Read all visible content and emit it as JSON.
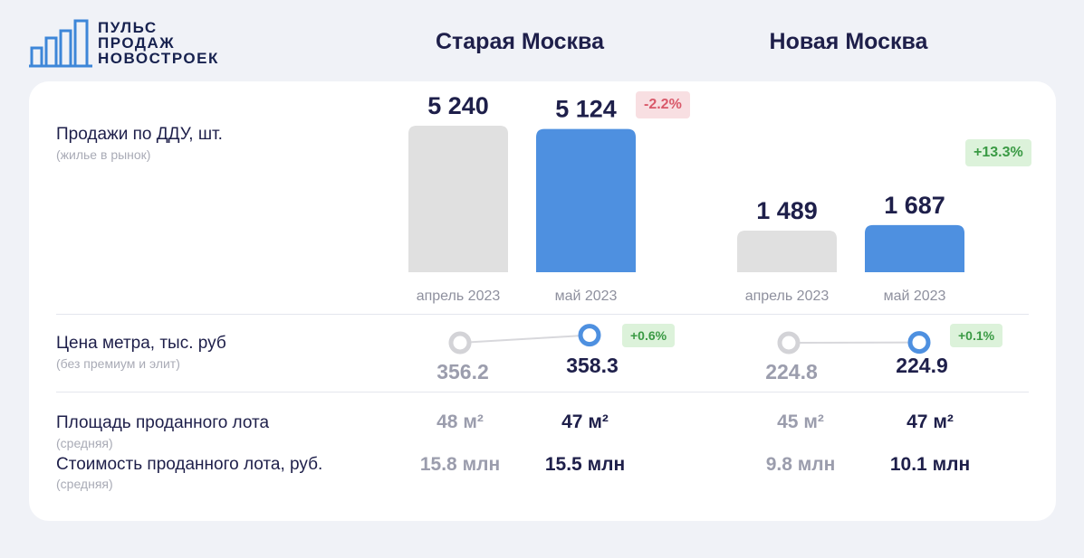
{
  "logo": {
    "lines": [
      "ПУЛЬС",
      "ПРОДАЖ",
      "НОВОСТРОЕК"
    ]
  },
  "columns": {
    "old": "Старая Москва",
    "new": "Новая Москва"
  },
  "rows": {
    "sales": {
      "title": "Продажи по ДДУ, шт.",
      "subtitle": "(жилье в рынок)"
    },
    "price": {
      "title": "Цена метра, тыс. руб",
      "subtitle": "(без премиум и элит)"
    },
    "area": {
      "title": "Площадь проданного лота",
      "subtitle": "(средняя)"
    },
    "cost": {
      "title": "Стоимость проданного лота, руб.",
      "subtitle": "(средняя)"
    }
  },
  "chart_data": [
    {
      "type": "bar",
      "group": "Старая Москва",
      "categories": [
        "апрель 2023",
        "май 2023"
      ],
      "values": [
        5240,
        5124
      ],
      "value_labels": [
        "5 240",
        "5 124"
      ],
      "change": "-2.2%",
      "colors": [
        "#e0e0e0",
        "#4e90e0"
      ]
    },
    {
      "type": "bar",
      "group": "Новая Москва",
      "categories": [
        "апрель 2023",
        "май 2023"
      ],
      "values": [
        1489,
        1687
      ],
      "value_labels": [
        "1 489",
        "1 687"
      ],
      "change": "+13.3%",
      "colors": [
        "#e0e0e0",
        "#4e90e0"
      ]
    },
    {
      "type": "line",
      "group": "Старая Москва",
      "categories": [
        "апрель 2023",
        "май 2023"
      ],
      "values": [
        356.2,
        358.3
      ],
      "value_labels": [
        "356.2",
        "358.3"
      ],
      "change": "+0.6%"
    },
    {
      "type": "line",
      "group": "Новая Москва",
      "categories": [
        "апрель 2023",
        "май 2023"
      ],
      "values": [
        224.8,
        224.9
      ],
      "value_labels": [
        "224.8",
        "224.9"
      ],
      "change": "+0.1%"
    }
  ],
  "table": {
    "old": {
      "area": [
        "48 м²",
        "47 м²"
      ],
      "cost": [
        "15.8 млн",
        "15.5 млн"
      ]
    },
    "new": {
      "area": [
        "45 м²",
        "47 м²"
      ],
      "cost": [
        "9.8 млн",
        "10.1 млн"
      ]
    }
  },
  "colors": {
    "accent": "#4e90e0",
    "grey_bar": "#e0e0e0",
    "text_dark": "#1e1f4a",
    "text_grey": "#9b9dad",
    "negative": "#d9596a",
    "positive": "#3a9a44"
  }
}
